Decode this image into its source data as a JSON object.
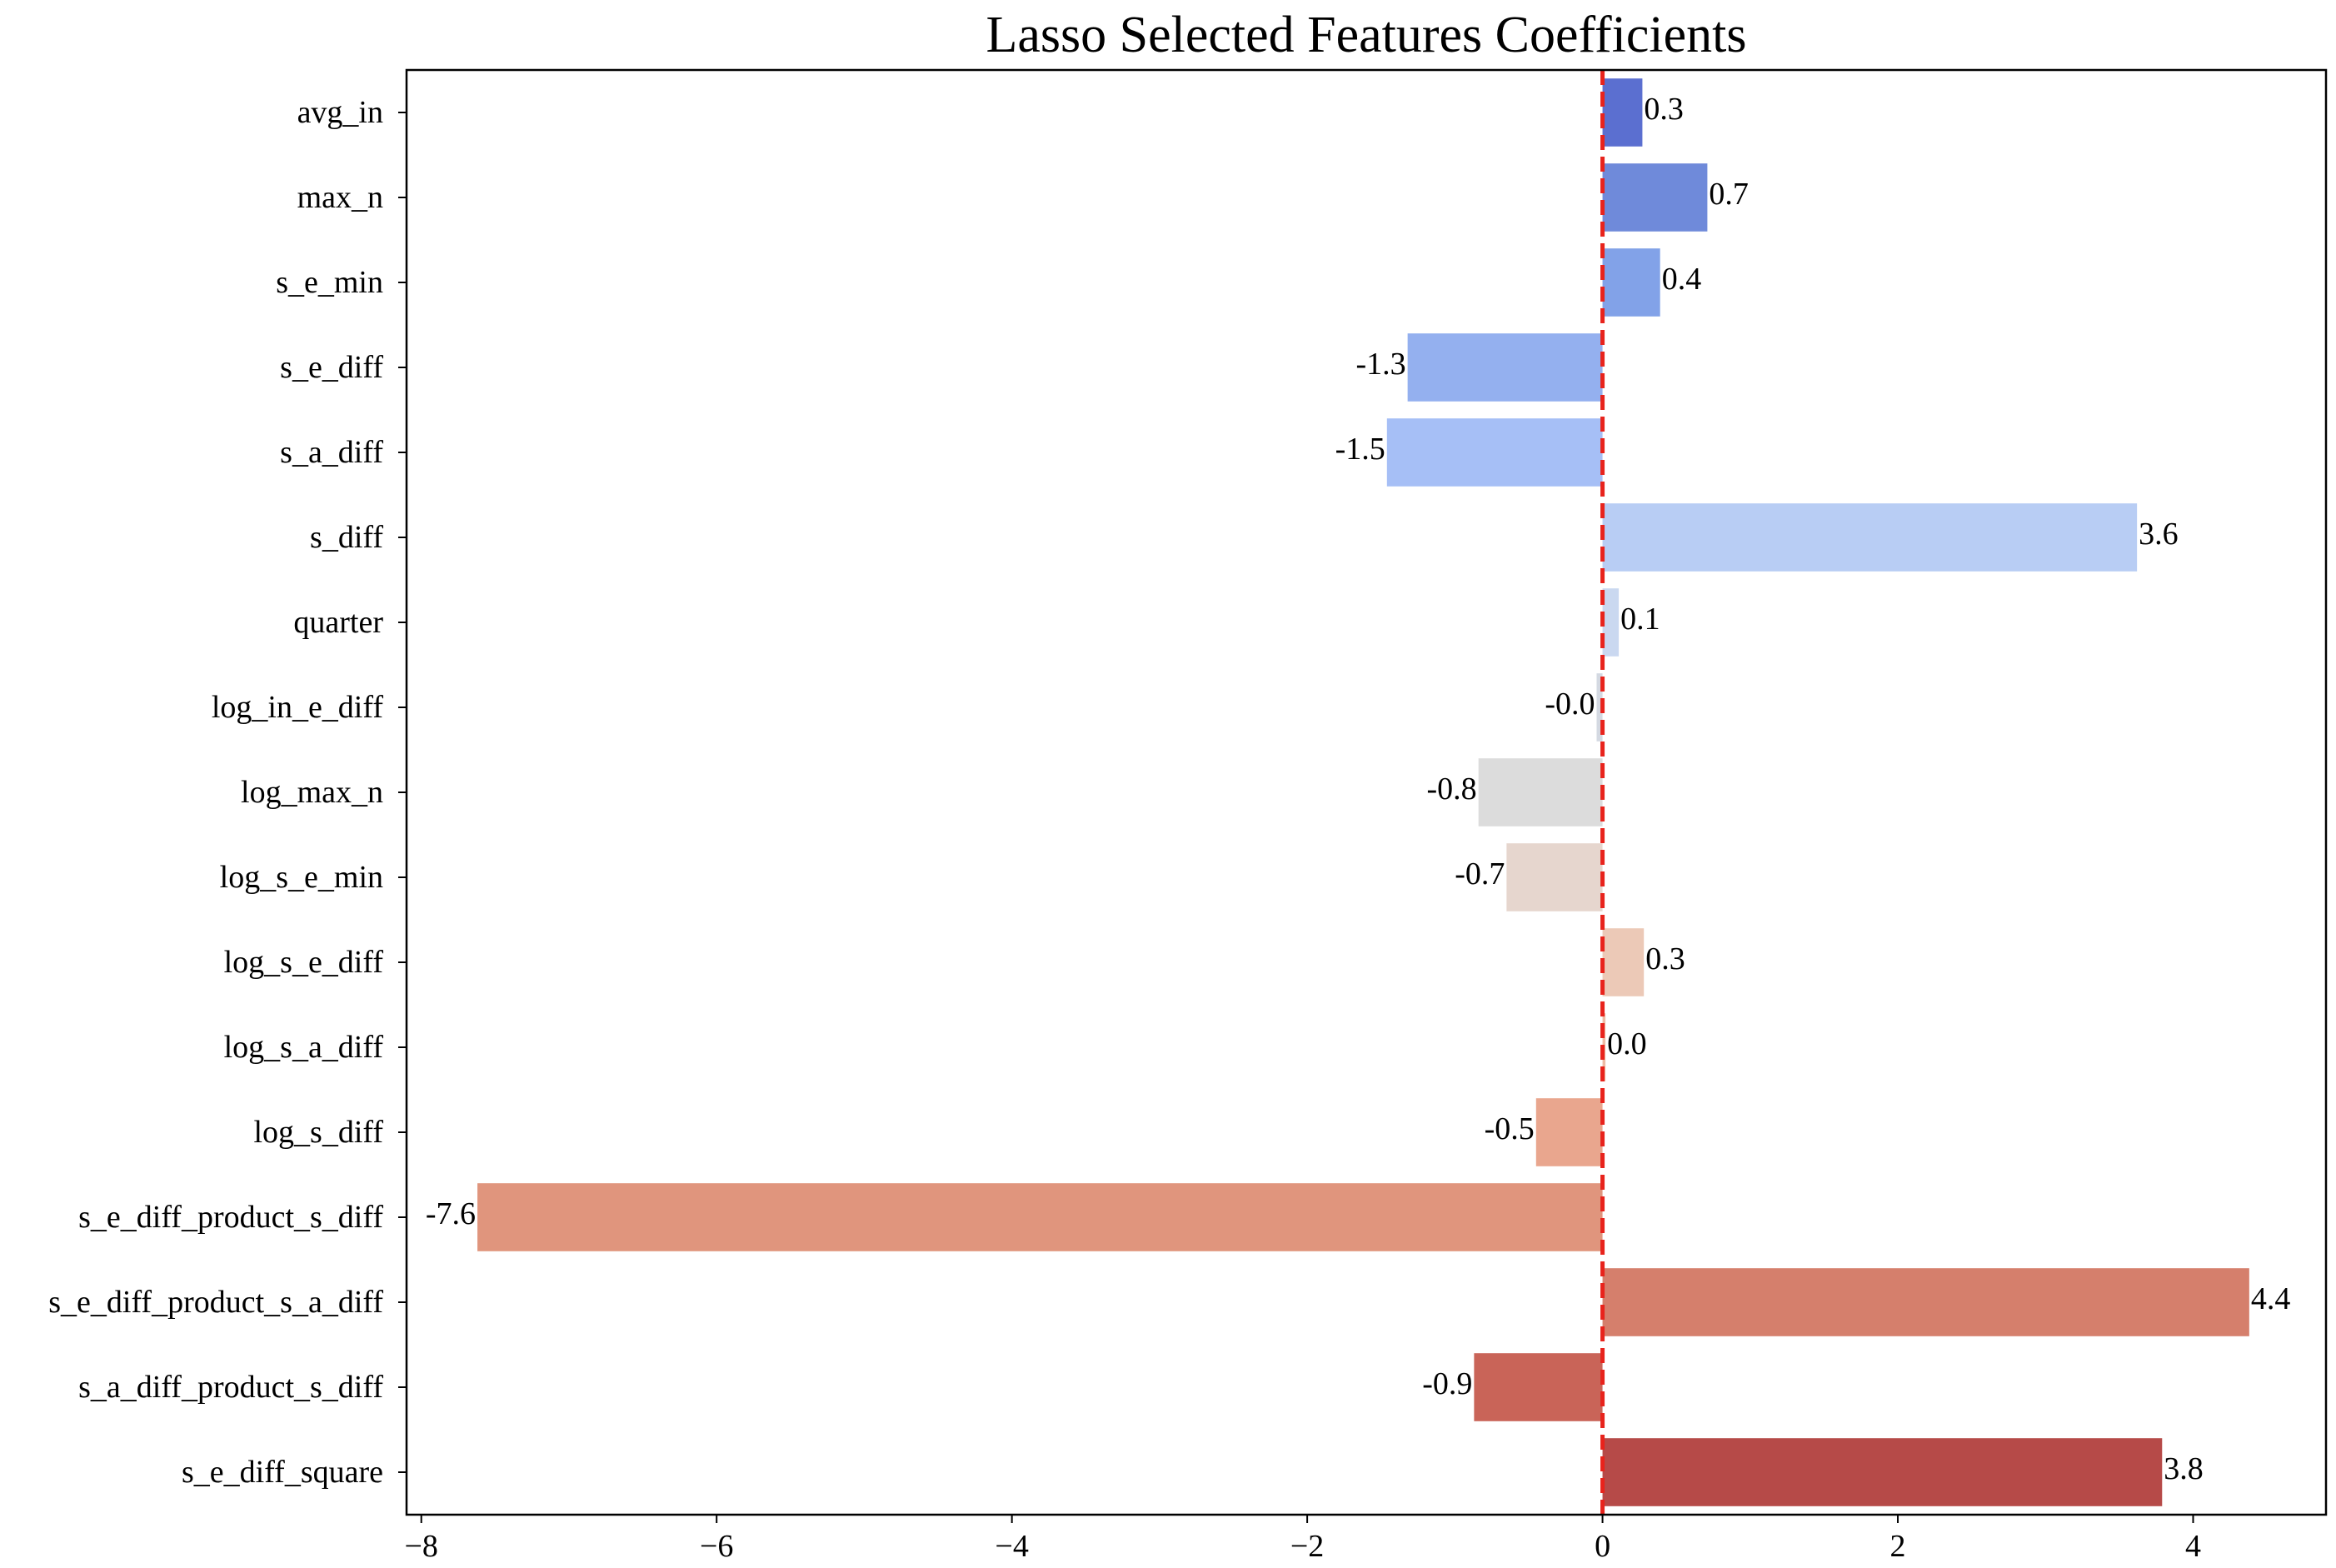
{
  "chart_data": {
    "type": "bar",
    "orientation": "horizontal",
    "title": "Lasso Selected Features Coefficients",
    "xlabel": "",
    "ylabel": "",
    "xlim": [
      -8.1,
      4.9
    ],
    "xticks": [
      -8,
      -6,
      -4,
      -2,
      0,
      2,
      4
    ],
    "xtick_labels": [
      "−8",
      "−6",
      "−4",
      "−2",
      "0",
      "2",
      "4"
    ],
    "reference_line": {
      "x": 0,
      "style": "dashed",
      "color": "#e8231c"
    },
    "grid": false,
    "categories": [
      "avg_in",
      "max_n",
      "s_e_min",
      "s_e_diff",
      "s_a_diff",
      "s_diff",
      "quarter",
      "log_in_e_diff",
      "log_max_n",
      "log_s_e_min",
      "log_s_e_diff",
      "log_s_a_diff",
      "log_s_diff",
      "s_e_diff_product_s_diff",
      "s_e_diff_product_s_a_diff",
      "s_a_diff_product_s_diff",
      "s_e_diff_square"
    ],
    "values": [
      0.27,
      0.71,
      0.39,
      -1.32,
      -1.46,
      3.62,
      0.11,
      -0.04,
      -0.84,
      -0.65,
      0.28,
      0.02,
      -0.45,
      -7.62,
      4.38,
      -0.87,
      3.79
    ],
    "value_labels": [
      "0.3",
      "0.7",
      "0.4",
      "-1.3",
      "-1.5",
      "3.6",
      "0.1",
      "-0.0",
      "-0.8",
      "-0.7",
      "0.3",
      "0.0",
      "-0.5",
      "-7.6",
      "4.4",
      "-0.9",
      "3.8"
    ],
    "colors": [
      "#5b6fd0",
      "#6f8ada",
      "#82a2e8",
      "#94b0ef",
      "#a6bff6",
      "#b8cdf4",
      "#cad8f0",
      "#d4d9e2",
      "#dcdcdc",
      "#e6d6ce",
      "#ecc9b7",
      "#eebba4",
      "#e9a68e",
      "#e0957d",
      "#d57f6c",
      "#c96458",
      "#b64a48"
    ]
  }
}
